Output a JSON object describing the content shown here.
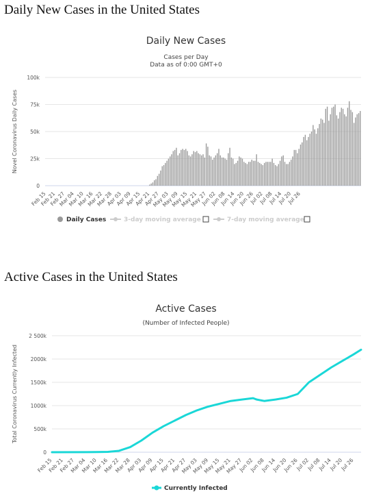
{
  "headings": {
    "daily": "Daily New Cases in the United States",
    "active": "Active Cases in the United States"
  },
  "chart_data": [
    {
      "type": "bar",
      "title": "Daily New Cases",
      "subtitle1": "Cases per Day",
      "subtitle2": "Data as of 0:00 GMT+0",
      "ylabel": "Novel Coronavirus Daily Cases",
      "ylim": [
        0,
        100000
      ],
      "yticks": [
        0,
        25000,
        50000,
        75000,
        100000
      ],
      "ytick_labels": [
        "0",
        "25k",
        "50k",
        "75k",
        "100k"
      ],
      "start_date": "Feb 15",
      "xtick_labels": [
        "Feb 15",
        "Feb 21",
        "Feb 27",
        "Mar 04",
        "Mar 10",
        "Mar 16",
        "Mar 22",
        "Mar 28",
        "Apr 03",
        "Apr 09",
        "Apr 15",
        "Apr 21",
        "Apr 27",
        "May 03",
        "May 09",
        "May 15",
        "May 21",
        "May 27",
        "Jun 02",
        "Jun 08",
        "Jun 14",
        "Jun 20",
        "Jun 26",
        "Jul 02",
        "Jul 08",
        "Jul 14",
        "Jul 20",
        "Jul 26"
      ],
      "values": [
        0,
        0,
        0,
        0,
        0,
        0,
        0,
        0,
        0,
        0,
        0,
        0,
        0,
        0,
        0,
        0,
        0,
        0,
        0,
        0,
        0,
        0,
        0,
        0,
        0,
        0,
        0,
        0,
        0,
        0,
        0,
        0,
        0,
        0,
        0,
        0,
        0,
        0,
        0,
        0,
        0,
        0,
        0,
        0,
        0,
        0,
        0,
        0,
        0,
        0,
        0,
        0,
        0,
        0,
        0,
        0,
        0,
        0,
        0,
        0,
        0,
        0,
        0,
        0,
        0,
        0,
        1000,
        2000,
        3000,
        5000,
        6000,
        9000,
        11000,
        14000,
        18000,
        19000,
        21000,
        23000,
        25000,
        27000,
        29000,
        32000,
        33000,
        35000,
        28000,
        30000,
        33000,
        34000,
        33000,
        34000,
        32000,
        28000,
        27000,
        29000,
        32000,
        31000,
        32000,
        30000,
        29000,
        28000,
        29000,
        26000,
        39000,
        36000,
        28000,
        27000,
        24000,
        26000,
        28000,
        30000,
        34000,
        28000,
        26000,
        26000,
        25000,
        24000,
        30000,
        35000,
        26000,
        25000,
        20000,
        21000,
        23000,
        27000,
        26000,
        25000,
        22000,
        21000,
        20000,
        22000,
        22000,
        24000,
        23000,
        23000,
        29000,
        22000,
        21000,
        20000,
        19000,
        21000,
        22000,
        22000,
        22000,
        22000,
        25000,
        21000,
        19000,
        18000,
        20000,
        23000,
        27000,
        28000,
        22000,
        20000,
        20000,
        22000,
        24000,
        27000,
        33000,
        33000,
        30000,
        34000,
        38000,
        40000,
        45000,
        47000,
        42000,
        45000,
        48000,
        50000,
        56000,
        52000,
        48000,
        53000,
        57000,
        62000,
        61000,
        58000,
        71000,
        73000,
        60000,
        66000,
        72000,
        73000,
        75000,
        65000,
        62000,
        68000,
        72000,
        71000,
        66000,
        64000,
        72000,
        78000,
        70000,
        68000,
        58000,
        63000,
        66000,
        67000,
        69000
      ],
      "legend": [
        {
          "label": "Daily Cases",
          "color": "#999999",
          "active": true
        },
        {
          "label": "3-day moving average",
          "color": "#cccccc",
          "active": false
        },
        {
          "label": "7-day moving average",
          "color": "#cccccc",
          "active": false
        }
      ]
    },
    {
      "type": "line",
      "title": "Active Cases",
      "subtitle1": "(Number of Infected People)",
      "ylabel": "Total Coronavirus Currently Infected",
      "ylim": [
        0,
        2500000
      ],
      "yticks": [
        0,
        500000,
        1000000,
        1500000,
        2000000,
        2500000
      ],
      "ytick_labels": [
        "0",
        "500k",
        "1000k",
        "1500k",
        "2000k",
        "2 500k"
      ],
      "start_date": "Feb 15",
      "xtick_labels": [
        "Feb 15",
        "Feb 21",
        "Feb 27",
        "Mar 04",
        "Mar 10",
        "Mar 16",
        "Mar 22",
        "Mar 28",
        "Apr 03",
        "Apr 09",
        "Apr 15",
        "Apr 21",
        "Apr 27",
        "May 03",
        "May 09",
        "May 15",
        "May 21",
        "May 27",
        "Jun 02",
        "Jun 08",
        "Jun 14",
        "Jun 20",
        "Jun 26",
        "Jul 02",
        "Jul 08",
        "Jul 14",
        "Jul 20",
        "Jul 26"
      ],
      "x": [
        "Feb 15",
        "Mar 10",
        "Mar 16",
        "Mar 22",
        "Mar 28",
        "Apr 03",
        "Apr 09",
        "Apr 15",
        "Apr 21",
        "Apr 27",
        "May 03",
        "May 09",
        "May 15",
        "May 21",
        "May 27",
        "Jun 02",
        "Jun 04",
        "Jun 08",
        "Jun 14",
        "Jun 20",
        "Jun 26",
        "Jul 02",
        "Jul 08",
        "Jul 14",
        "Jul 20",
        "Jul 26",
        "Jul 30"
      ],
      "values": [
        0,
        3000,
        8000,
        30000,
        110000,
        250000,
        420000,
        560000,
        680000,
        800000,
        900000,
        980000,
        1040000,
        1100000,
        1130000,
        1160000,
        1130000,
        1100000,
        1130000,
        1170000,
        1250000,
        1500000,
        1660000,
        1820000,
        1960000,
        2100000,
        2200000
      ],
      "series_name": "Currently Infected",
      "color": "#1ad7d7"
    }
  ]
}
